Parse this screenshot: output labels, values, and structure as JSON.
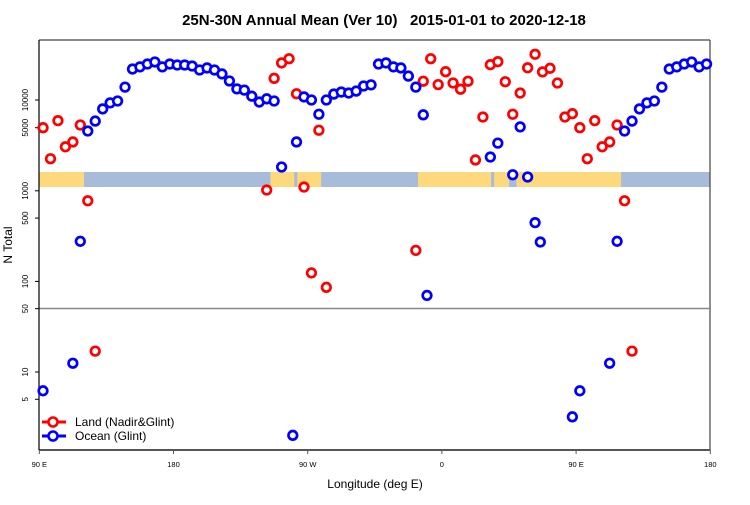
{
  "chart_data": {
    "type": "scatter",
    "title": "25N-30N Annual Mean (Ver 10)   2015-01-01 to 2020-12-18",
    "xlabel": "Longitude (deg E)",
    "ylabel": "N Total",
    "x_range_note": "90 E eastward through 180, 90 W, 0, 90 E, to 180 (longitudes 90-180 shown twice)",
    "x_ticks": [
      {
        "lon": 90,
        "label": "90 E"
      },
      {
        "lon": 180,
        "label": "180"
      },
      {
        "lon": -90,
        "label": "90 W"
      },
      {
        "lon": 0,
        "label": "0"
      },
      {
        "lon": 450,
        "label": "90 E"
      },
      {
        "lon": 540,
        "label": "180"
      }
    ],
    "y_scale": "log",
    "y_ticks_upper": [
      {
        "v": 5000,
        "label": "5000"
      },
      {
        "v": 10000,
        "label": "10000"
      }
    ],
    "y_ticks_lower": [
      {
        "v": 5,
        "label": "5"
      },
      {
        "v": 10,
        "label": "10"
      },
      {
        "v": 50,
        "label": "50"
      },
      {
        "v": 100,
        "label": "100"
      },
      {
        "v": 500,
        "label": "500"
      },
      {
        "v": 1000,
        "label": "1000"
      }
    ],
    "grid": false,
    "legend_placement": "bottom-left",
    "colors": {
      "land": "#ff0000",
      "ocean": "#0000ff",
      "map_land": "#fdd97c",
      "map_ocean": "#a7bcdb"
    },
    "land_mask_segments": [
      [
        90,
        120
      ],
      [
        -115,
        -99
      ],
      [
        -97,
        -81
      ],
      [
        -16,
        33
      ],
      [
        35,
        45
      ],
      [
        50,
        120
      ]
    ],
    "series": [
      {
        "name": "Land (Nadir&Glint)",
        "color": "#ff0000",
        "points": [
          [
            92.5,
            5000
          ],
          [
            97.5,
            2300
          ],
          [
            102.5,
            5960
          ],
          [
            107.5,
            3100
          ],
          [
            112.5,
            3500
          ],
          [
            117.5,
            5350
          ],
          [
            122.5,
            776
          ],
          [
            127.5,
            17
          ],
          [
            -117.5,
            1020
          ],
          [
            -112.5,
            17200
          ],
          [
            -107.5,
            25300
          ],
          [
            -102.5,
            28100
          ],
          [
            -97.5,
            11700
          ],
          [
            -92.5,
            1100
          ],
          [
            -87.5,
            124
          ],
          [
            -82.5,
            4690
          ],
          [
            -77.5,
            86
          ],
          [
            -17.5,
            220
          ],
          [
            -12.5,
            16000
          ],
          [
            -7.5,
            28100
          ],
          [
            -2.5,
            14700
          ],
          [
            2.5,
            20300
          ],
          [
            7.5,
            15300
          ],
          [
            12.5,
            13100
          ],
          [
            17.5,
            16000
          ],
          [
            22.5,
            2230
          ],
          [
            27.5,
            6530
          ],
          [
            32.5,
            24200
          ],
          [
            37.5,
            26100
          ],
          [
            42.5,
            15800
          ],
          [
            47.5,
            7000
          ],
          [
            52.5,
            11900
          ],
          [
            57.5,
            22400
          ],
          [
            62.5,
            31400
          ],
          [
            67.5,
            20200
          ],
          [
            72.5,
            22100
          ],
          [
            77.5,
            15300
          ],
          [
            82.5,
            6530
          ],
          [
            87.5,
            7100
          ]
        ]
      },
      {
        "name": "Ocean (Glint)",
        "color": "#0000ff",
        "points": [
          [
            92.5,
            6.2
          ],
          [
            112.5,
            12.5
          ],
          [
            117.5,
            277
          ],
          [
            122.5,
            4600
          ],
          [
            127.5,
            5900
          ],
          [
            132.5,
            8000
          ],
          [
            137.5,
            9300
          ],
          [
            142.5,
            9750
          ],
          [
            147.5,
            13800
          ],
          [
            152.5,
            21700
          ],
          [
            157.5,
            22900
          ],
          [
            162.5,
            24600
          ],
          [
            167.5,
            25900
          ],
          [
            172.5,
            22900
          ],
          [
            177.5,
            24600
          ],
          [
            -177.5,
            24000
          ],
          [
            -172.5,
            24000
          ],
          [
            -167.5,
            23400
          ],
          [
            -162.5,
            21200
          ],
          [
            -157.5,
            22300
          ],
          [
            -152.5,
            21200
          ],
          [
            -147.5,
            19200
          ],
          [
            -142.5,
            16100
          ],
          [
            -137.5,
            13200
          ],
          [
            -132.5,
            12800
          ],
          [
            -127.5,
            11000
          ],
          [
            -122.5,
            9500
          ],
          [
            -117.5,
            10300
          ],
          [
            -112.5,
            9750
          ],
          [
            -107.5,
            1870
          ],
          [
            -100,
            2.0
          ],
          [
            -97.5,
            3500
          ],
          [
            -92.5,
            10800
          ],
          [
            -87.5,
            10000
          ],
          [
            -82.5,
            7000
          ],
          [
            -77.5,
            10000
          ],
          [
            -72.5,
            11600
          ],
          [
            -67.5,
            12200
          ],
          [
            -62.5,
            11900
          ],
          [
            -57.5,
            12500
          ],
          [
            -52.5,
            14200
          ],
          [
            -47.5,
            14600
          ],
          [
            -42.5,
            24600
          ],
          [
            -37.5,
            25300
          ],
          [
            -32.5,
            22900
          ],
          [
            -27.5,
            22300
          ],
          [
            -22.5,
            18200
          ],
          [
            -17.5,
            13800
          ],
          [
            -12.5,
            6900
          ],
          [
            -10,
            70
          ],
          [
            32.5,
            2400
          ],
          [
            37.5,
            3400
          ],
          [
            47.5,
            1540
          ],
          [
            52.5,
            5100
          ],
          [
            57.5,
            1420
          ],
          [
            62.5,
            445
          ],
          [
            66,
            272
          ],
          [
            87.5,
            3.2
          ]
        ]
      }
    ]
  }
}
